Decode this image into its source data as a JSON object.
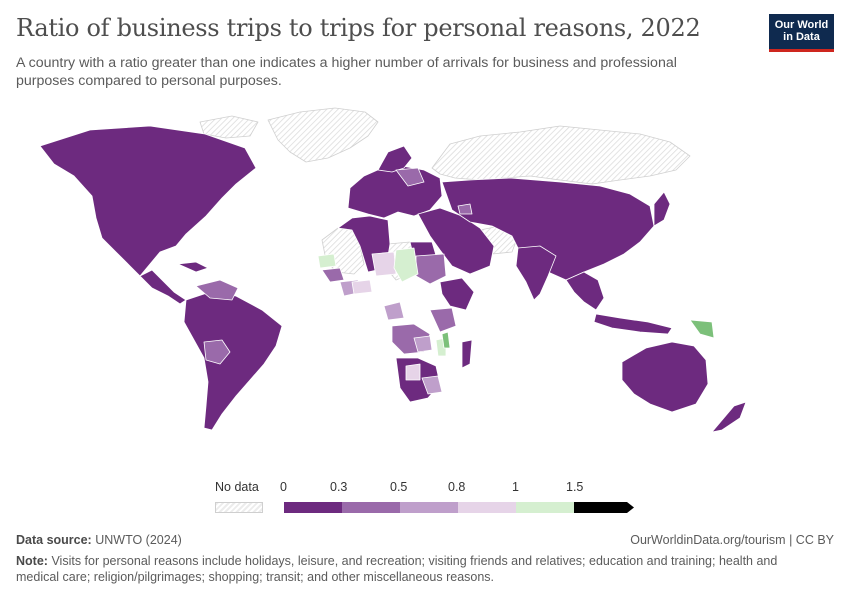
{
  "title": "Ratio of business trips to trips for personal reasons, 2022",
  "subtitle": "A country with a ratio greater than one indicates a higher number of arrivals for business and professional purposes compared to personal purposes.",
  "logo": {
    "line1": "Our World",
    "line2": "in Data"
  },
  "legend": {
    "no_data_label": "No data",
    "ticks": [
      "0",
      "0.3",
      "0.5",
      "0.8",
      "1",
      "1.5"
    ],
    "bins": [
      {
        "range": "0–0.3",
        "color": "#6d2a7f"
      },
      {
        "range": "0.3–0.5",
        "color": "#9a6aaa"
      },
      {
        "range": "0.5–0.8",
        "color": "#bf9fcb"
      },
      {
        "range": "0.8–1",
        "color": "#e6d4e8"
      },
      {
        "range": "1–1.5",
        "color": "#d5efd0"
      },
      {
        "range": ">1.5",
        "color": "#7cc07a"
      }
    ]
  },
  "colors": {
    "no_data": "#ececec",
    "border": "#ffffff"
  },
  "footer": {
    "source_label": "Data source:",
    "source": "UNWTO (2024)",
    "url": "OurWorldinData.org/tourism | CC BY"
  },
  "note": {
    "label": "Note:",
    "text": "Visits for personal reasons include holidays, leisure, and recreation; visiting friends and relatives; education and training; health and medical care; religion/pilgrimages; shopping; transit; and other miscellaneous reasons."
  }
}
